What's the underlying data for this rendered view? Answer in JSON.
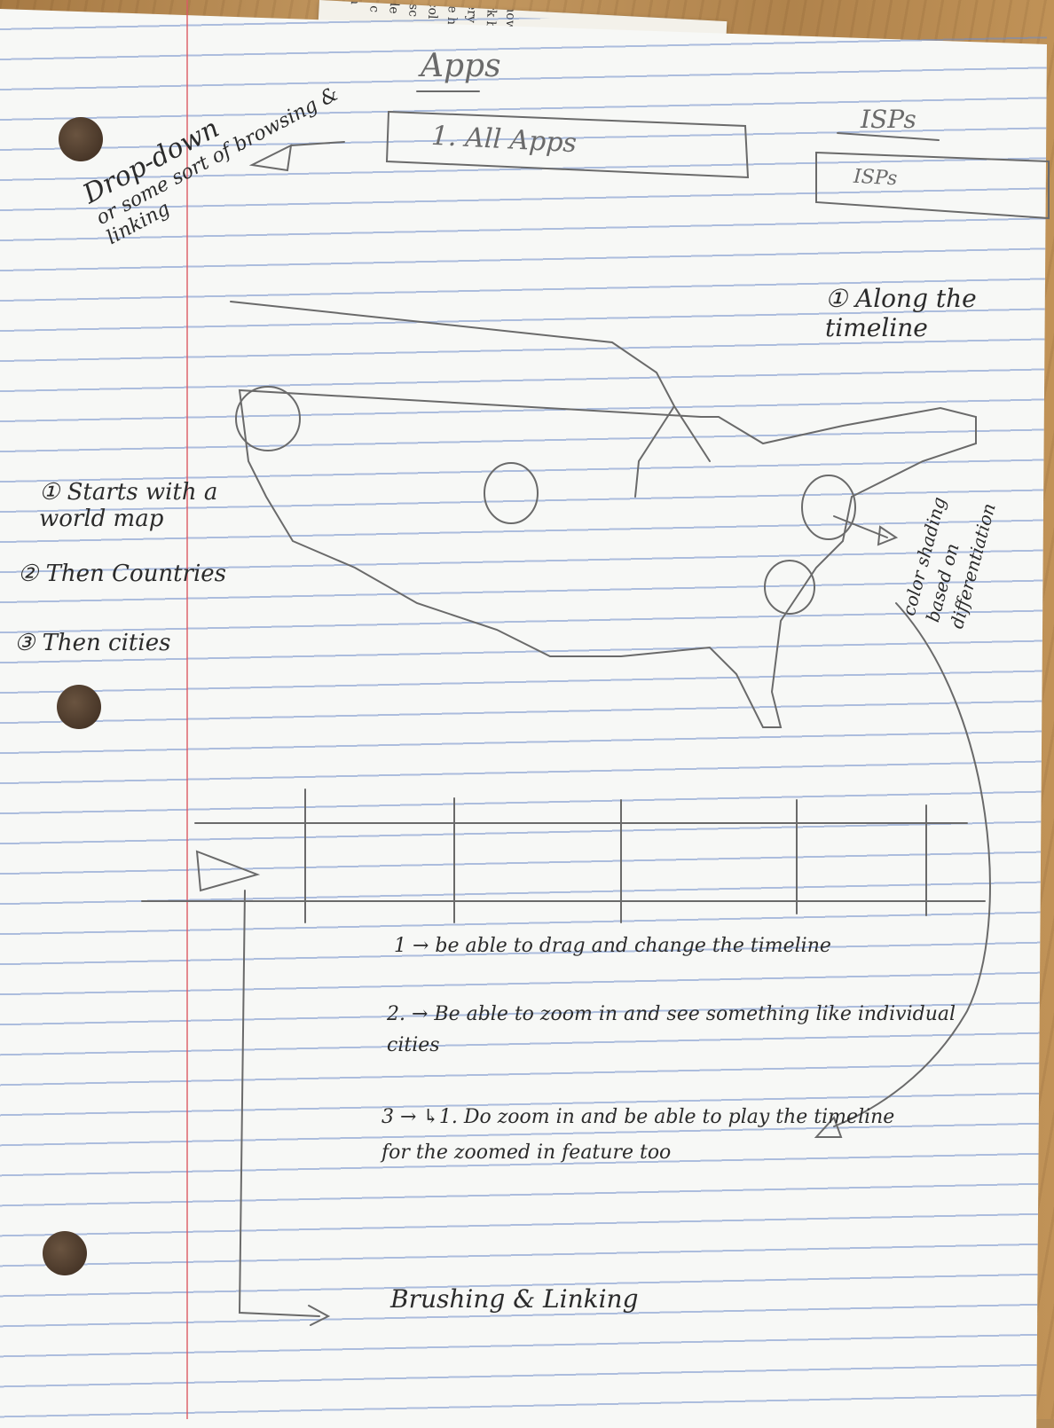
{
  "back_page": {
    "text_fragments": [
      "h",
      "i c",
      "de",
      "isc",
      "col",
      "le h",
      "ery r",
      "rk ba",
      "how"
    ]
  },
  "apps_panel": {
    "title": "Apps",
    "dropdown_value": "1. All Apps"
  },
  "isps_panel": {
    "title": "ISPs",
    "dropdown_value": "ISPs"
  },
  "dropdown_note": {
    "line1": "Drop-down",
    "line2": "or some sort of browsing &",
    "line3": "linking"
  },
  "map_note": {
    "label": "① Along the timeline"
  },
  "zoom_levels": [
    "① Starts with a world map",
    "② Then Countries",
    "③ Then cities"
  ],
  "color_note": "color shading based on differentiation",
  "timeline_notes": [
    "1 → be able to drag and change the timeline",
    "2. → Be able to zoom in and see something like individual cities",
    "3 → ↳1. Do zoom in and be able to play the timeline for the zoomed in feature too"
  ],
  "footer_note": "Brushing & Linking",
  "colors": {
    "pencil": "#6a6a6a",
    "ink": "#2b2b2b",
    "rule": "#6e8cc8",
    "margin": "#dc5a64"
  }
}
